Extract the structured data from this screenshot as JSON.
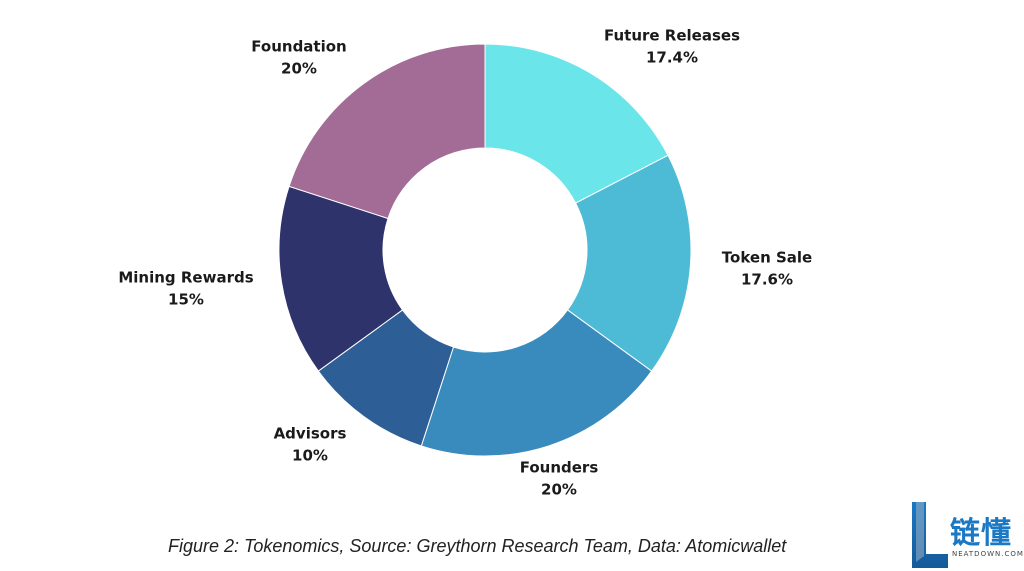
{
  "chart_data": {
    "type": "pie",
    "donut": true,
    "title": "",
    "slices": [
      {
        "label": "Future Releases",
        "value": 17.4,
        "value_label": "17.4%",
        "color": "#6ae5ea"
      },
      {
        "label": "Token Sale",
        "value": 17.6,
        "value_label": "17.6%",
        "color": "#4dbbd6"
      },
      {
        "label": "Founders",
        "value": 20,
        "value_label": "20%",
        "color": "#3a8bbd"
      },
      {
        "label": "Advisors",
        "value": 10,
        "value_label": "10%",
        "color": "#2d5e96"
      },
      {
        "label": "Mining Rewards",
        "value": 15,
        "value_label": "15%",
        "color": "#2f336b"
      },
      {
        "label": "Foundation",
        "value": 20,
        "value_label": "20%",
        "color": "#a36c96"
      }
    ]
  },
  "caption": "Figure 2:  Tokenomics, Source: Greythorn Research Team, Data: Atomicwallet",
  "watermark": {
    "text_cn": "链懂",
    "text_en": "NEATDOWN.COM"
  }
}
